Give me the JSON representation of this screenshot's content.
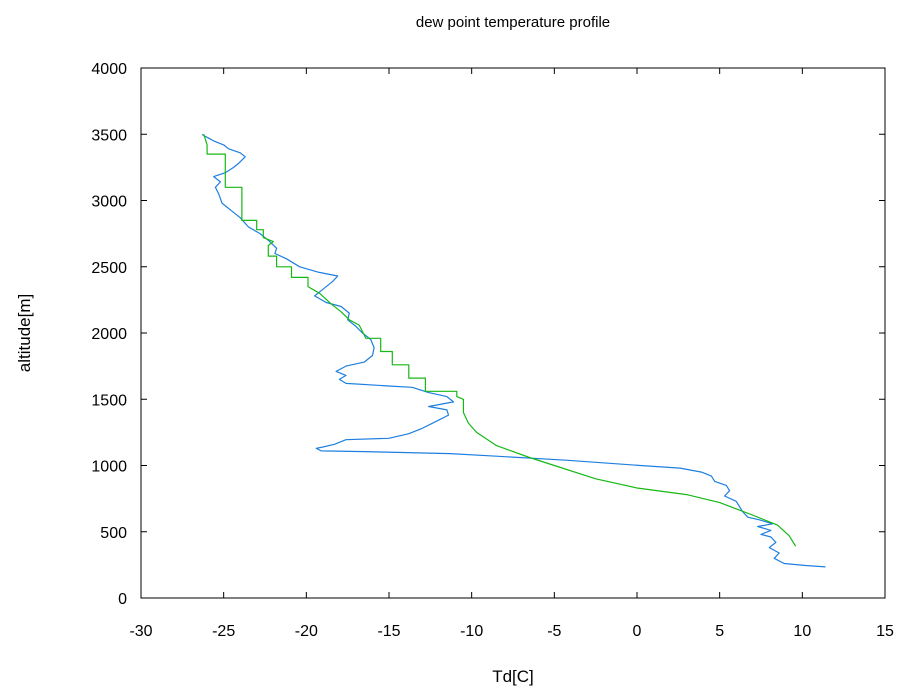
{
  "chart_data": {
    "type": "line",
    "title": "dew point temperature profile",
    "xlabel": "Td[C]",
    "ylabel": "altitude[m]",
    "xlim": [
      -30,
      15
    ],
    "ylim": [
      0,
      4000
    ],
    "xticks": [
      -30,
      -25,
      -20,
      -15,
      -10,
      -5,
      0,
      5,
      10,
      15
    ],
    "yticks": [
      0,
      500,
      1000,
      1500,
      2000,
      2500,
      3000,
      3500,
      4000
    ],
    "grid": false,
    "legend": "none",
    "series": [
      {
        "color": "#1e7fe0",
        "points": [
          [
            11.4,
            235
          ],
          [
            10.2,
            245
          ],
          [
            8.9,
            260
          ],
          [
            8.3,
            300
          ],
          [
            8.6,
            340
          ],
          [
            8.0,
            380
          ],
          [
            8.4,
            420
          ],
          [
            8.1,
            460
          ],
          [
            7.5,
            480
          ],
          [
            8.1,
            510
          ],
          [
            7.3,
            540
          ],
          [
            8.2,
            560
          ],
          [
            7.4,
            590
          ],
          [
            6.7,
            610
          ],
          [
            6.4,
            650
          ],
          [
            6.2,
            690
          ],
          [
            6.0,
            730
          ],
          [
            5.3,
            770
          ],
          [
            5.6,
            810
          ],
          [
            5.4,
            850
          ],
          [
            4.7,
            880
          ],
          [
            4.5,
            920
          ],
          [
            3.9,
            950
          ],
          [
            2.6,
            980
          ],
          [
            0.2,
            1000
          ],
          [
            -4.3,
            1040
          ],
          [
            -8.5,
            1070
          ],
          [
            -11.3,
            1090
          ],
          [
            -16.5,
            1105
          ],
          [
            -19.1,
            1110
          ],
          [
            -19.4,
            1130
          ],
          [
            -19.0,
            1140
          ],
          [
            -18.3,
            1160
          ],
          [
            -17.6,
            1195
          ],
          [
            -15.0,
            1205
          ],
          [
            -13.8,
            1240
          ],
          [
            -13.0,
            1280
          ],
          [
            -12.2,
            1330
          ],
          [
            -11.4,
            1380
          ],
          [
            -11.5,
            1420
          ],
          [
            -12.6,
            1445
          ],
          [
            -11.1,
            1480
          ],
          [
            -11.5,
            1520
          ],
          [
            -12.6,
            1550
          ],
          [
            -13.6,
            1590
          ],
          [
            -15.0,
            1600
          ],
          [
            -17.6,
            1620
          ],
          [
            -18.0,
            1650
          ],
          [
            -17.6,
            1680
          ],
          [
            -18.2,
            1710
          ],
          [
            -17.6,
            1750
          ],
          [
            -16.5,
            1780
          ],
          [
            -16.0,
            1830
          ],
          [
            -15.9,
            1890
          ],
          [
            -16.1,
            1950
          ],
          [
            -16.6,
            2000
          ],
          [
            -17.0,
            2050
          ],
          [
            -17.5,
            2100
          ],
          [
            -17.4,
            2150
          ],
          [
            -17.9,
            2200
          ],
          [
            -18.8,
            2230
          ],
          [
            -19.5,
            2280
          ],
          [
            -19.0,
            2330
          ],
          [
            -18.4,
            2390
          ],
          [
            -18.1,
            2430
          ],
          [
            -19.3,
            2460
          ],
          [
            -20.4,
            2500
          ],
          [
            -21.2,
            2560
          ],
          [
            -21.9,
            2600
          ],
          [
            -21.8,
            2640
          ],
          [
            -22.3,
            2700
          ],
          [
            -22.8,
            2750
          ],
          [
            -23.5,
            2800
          ],
          [
            -24.0,
            2870
          ],
          [
            -24.6,
            2930
          ],
          [
            -25.1,
            2980
          ],
          [
            -25.3,
            3050
          ],
          [
            -25.5,
            3100
          ],
          [
            -25.2,
            3140
          ],
          [
            -25.6,
            3180
          ],
          [
            -24.9,
            3210
          ],
          [
            -24.4,
            3250
          ],
          [
            -24.1,
            3280
          ],
          [
            -23.7,
            3330
          ],
          [
            -24.0,
            3360
          ],
          [
            -24.7,
            3390
          ],
          [
            -25.0,
            3420
          ],
          [
            -25.6,
            3450
          ],
          [
            -25.9,
            3470
          ],
          [
            -26.2,
            3490
          ],
          [
            -26.3,
            3500
          ]
        ]
      },
      {
        "color": "#16b816",
        "points": [
          [
            9.6,
            390
          ],
          [
            9.2,
            470
          ],
          [
            8.5,
            550
          ],
          [
            6.9,
            630
          ],
          [
            5.0,
            720
          ],
          [
            3.0,
            780
          ],
          [
            0.0,
            830
          ],
          [
            -2.5,
            900
          ],
          [
            -5.0,
            1000
          ],
          [
            -6.5,
            1060
          ],
          [
            -8.5,
            1150
          ],
          [
            -9.7,
            1250
          ],
          [
            -10.2,
            1320
          ],
          [
            -10.5,
            1400
          ],
          [
            -10.5,
            1500
          ],
          [
            -10.9,
            1520
          ],
          [
            -10.9,
            1560
          ],
          [
            -12.8,
            1560
          ],
          [
            -12.8,
            1660
          ],
          [
            -13.8,
            1660
          ],
          [
            -13.8,
            1760
          ],
          [
            -14.8,
            1760
          ],
          [
            -14.8,
            1860
          ],
          [
            -15.5,
            1860
          ],
          [
            -15.5,
            1960
          ],
          [
            -16.4,
            1960
          ],
          [
            -16.8,
            2060
          ],
          [
            -17.4,
            2100
          ],
          [
            -17.9,
            2160
          ],
          [
            -18.5,
            2220
          ],
          [
            -19.2,
            2300
          ],
          [
            -19.9,
            2350
          ],
          [
            -19.9,
            2420
          ],
          [
            -20.9,
            2420
          ],
          [
            -20.9,
            2500
          ],
          [
            -21.8,
            2500
          ],
          [
            -21.8,
            2580
          ],
          [
            -22.3,
            2580
          ],
          [
            -22.3,
            2660
          ],
          [
            -22.0,
            2690
          ],
          [
            -22.6,
            2720
          ],
          [
            -22.6,
            2780
          ],
          [
            -23.0,
            2780
          ],
          [
            -23.0,
            2850
          ],
          [
            -23.9,
            2850
          ],
          [
            -23.9,
            2990
          ],
          [
            -23.9,
            3060
          ],
          [
            -23.9,
            3100
          ],
          [
            -24.9,
            3100
          ],
          [
            -24.9,
            3200
          ],
          [
            -24.9,
            3350
          ],
          [
            -26.0,
            3350
          ],
          [
            -26.0,
            3420
          ],
          [
            -26.2,
            3500
          ]
        ]
      }
    ]
  }
}
